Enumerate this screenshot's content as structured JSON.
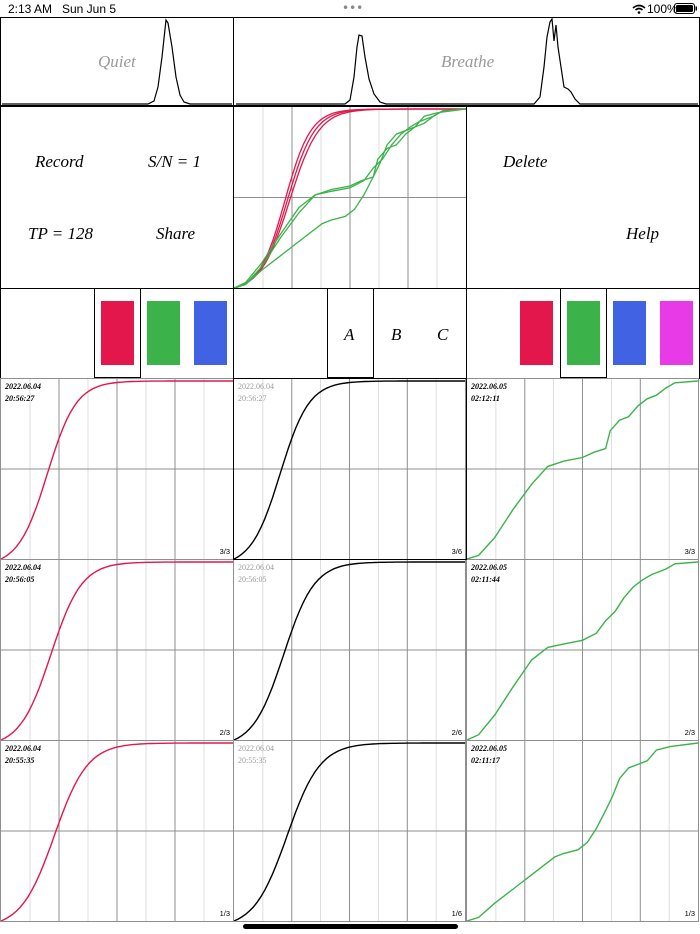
{
  "status_bar": {
    "time": "2:13 AM",
    "date": "Sun Jun 5",
    "battery": "100%",
    "icons": [
      "dots-icon",
      "wifi-icon",
      "battery-icon"
    ]
  },
  "top": {
    "quiet_label": "Quiet",
    "breathe_label": "Breathe"
  },
  "controls": {
    "record": "Record",
    "sn": "S/N = 1",
    "tp": "TP = 128",
    "share": "Share",
    "delete": "Delete",
    "help": "Help"
  },
  "colors": {
    "red": "#e3174b",
    "green": "#3bb34a",
    "blue": "#4262e4",
    "magenta": "#e83ae6",
    "grid": "#8f8f8f"
  },
  "left_palette": {
    "selected": "red",
    "items": [
      "red",
      "green",
      "blue"
    ]
  },
  "tabs": {
    "selected": "A",
    "items": [
      "A",
      "B",
      "C"
    ]
  },
  "right_palette": {
    "selected": "green",
    "items": [
      "red",
      "green",
      "blue",
      "magenta"
    ]
  },
  "panels": [
    {
      "time1": "2022.06.04",
      "time2": "20:56:27",
      "count": "3/3",
      "color": "red"
    },
    {
      "time1": "2022.06.04",
      "time2": "20:56:27",
      "count": "3/6",
      "color": "black"
    },
    {
      "time1": "2022.06.05",
      "time2": "02:12:11",
      "count": "3/3",
      "color": "green"
    },
    {
      "time1": "2022.06.04",
      "time2": "20:56:05",
      "count": "2/3",
      "color": "red"
    },
    {
      "time1": "2022.06.04",
      "time2": "20:56:05",
      "count": "2/6",
      "color": "black"
    },
    {
      "time1": "2022.06.05",
      "time2": "02:11:44",
      "count": "2/3",
      "color": "green"
    },
    {
      "time1": "2022.06.04",
      "time2": "20:55:35",
      "count": "1/3",
      "color": "red"
    },
    {
      "time1": "2022.06.04",
      "time2": "20:55:35",
      "count": "1/6",
      "color": "black"
    },
    {
      "time1": "2022.06.05",
      "time2": "02:11:17",
      "count": "1/3",
      "color": "green"
    }
  ]
}
